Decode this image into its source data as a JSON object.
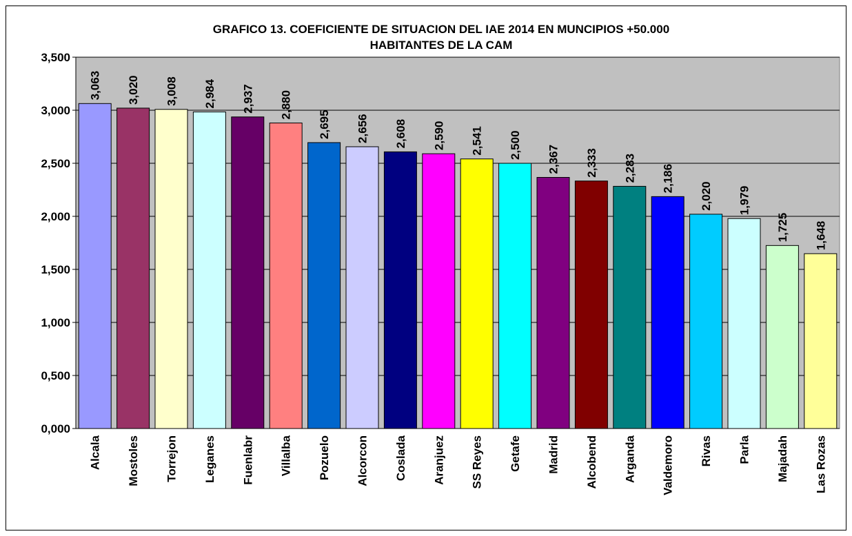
{
  "chart_data": {
    "type": "bar",
    "title": [
      "GRAFICO 13. COEFICIENTE DE SITUACION DEL IAE 2014 EN MUNCIPIOS +50.000",
      "HABITANTES DE LA CAM"
    ],
    "categories": [
      "Alcala",
      "Mostoles",
      "Torrejon",
      "Leganes",
      "Fuenlabr",
      "Villalba",
      "Pozuelo",
      "Alcorcon",
      "Coslada",
      "Aranjuez",
      "SS Reyes",
      "Getafe",
      "Madrid",
      "Alcobend",
      "Arganda",
      "Valdemoro",
      "Rivas",
      "Parla",
      "Majadah",
      "Las Rozas"
    ],
    "values": [
      3.063,
      3.02,
      3.008,
      2.984,
      2.937,
      2.88,
      2.695,
      2.656,
      2.608,
      2.59,
      2.541,
      2.5,
      2.367,
      2.333,
      2.283,
      2.186,
      2.02,
      1.979,
      1.725,
      1.648
    ],
    "value_labels": [
      "3,063",
      "3,020",
      "3,008",
      "2,984",
      "2,937",
      "2,880",
      "2,695",
      "2,656",
      "2,608",
      "2,590",
      "2,541",
      "2,500",
      "2,367",
      "2,333",
      "2,283",
      "2,186",
      "2,020",
      "1,979",
      "1,725",
      "1,648"
    ],
    "colors": [
      "#9999ff",
      "#993366",
      "#ffffcc",
      "#ccffff",
      "#660066",
      "#ff8080",
      "#0066cc",
      "#ccccff",
      "#000080",
      "#ff00ff",
      "#ffff00",
      "#00ffff",
      "#800080",
      "#800000",
      "#008080",
      "#0000ff",
      "#00ccff",
      "#ccffff",
      "#ccffcc",
      "#ffff99"
    ],
    "ylim": [
      0,
      3.5
    ],
    "yticks": [
      {
        "value": 0,
        "label": "0,000"
      },
      {
        "value": 0.5,
        "label": "0,500"
      },
      {
        "value": 1,
        "label": "1,000"
      },
      {
        "value": 1.5,
        "label": "1,500"
      },
      {
        "value": 2,
        "label": "2,000"
      },
      {
        "value": 2.5,
        "label": "2,500"
      },
      {
        "value": 3,
        "label": "3,000"
      },
      {
        "value": 3.5,
        "label": "3,500"
      }
    ],
    "grid": true
  }
}
